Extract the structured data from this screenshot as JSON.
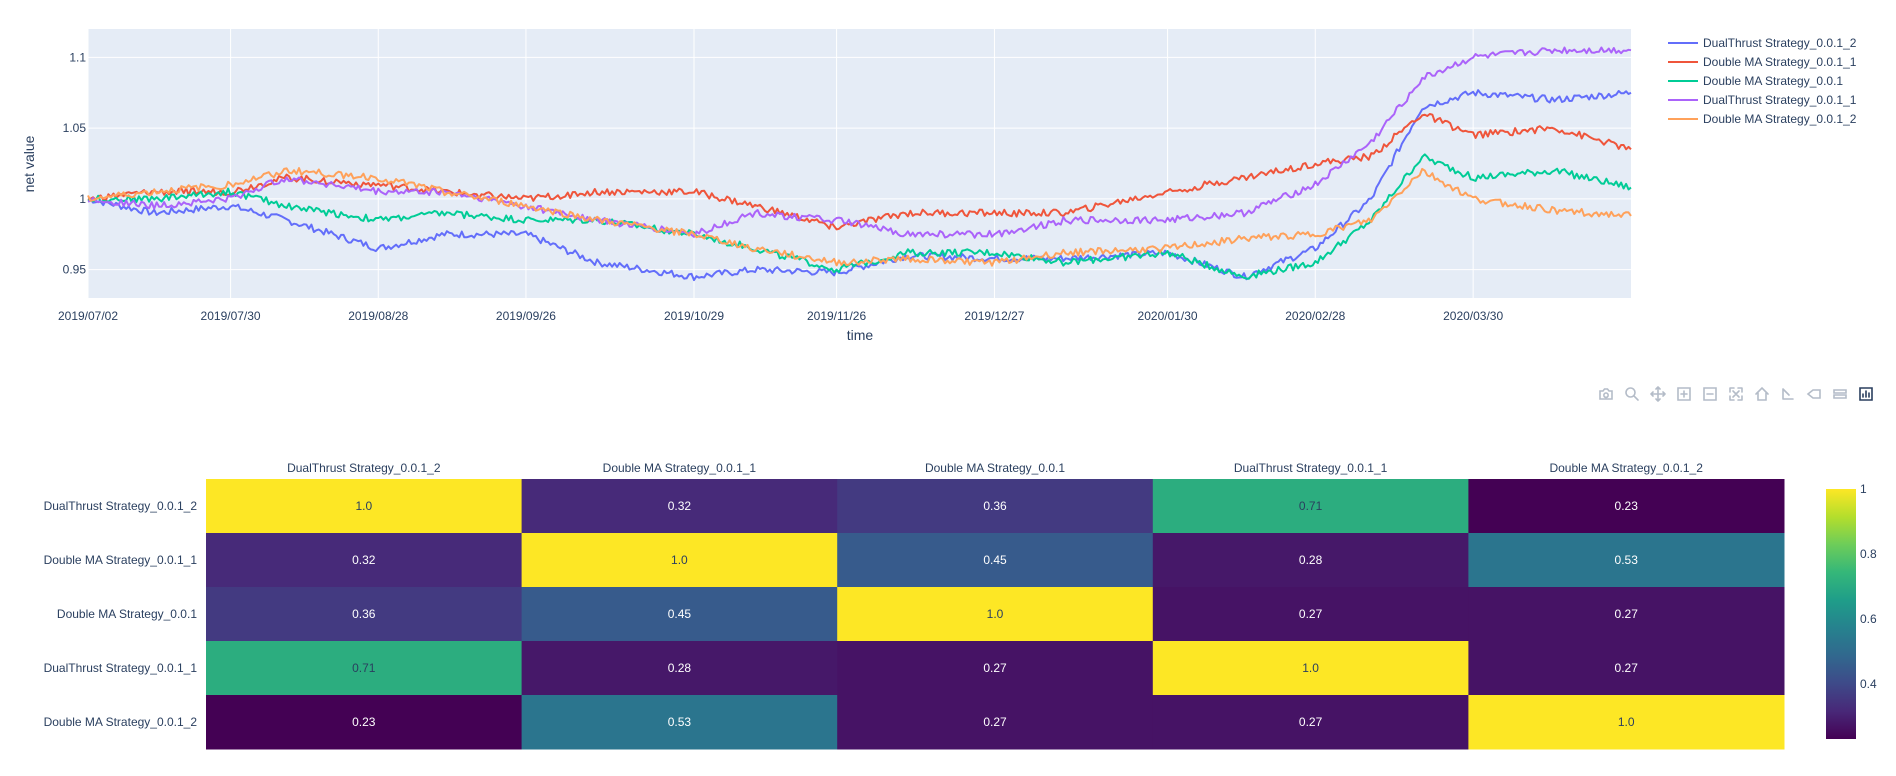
{
  "colors": {
    "plot_bg": "#e5ecf6",
    "grid": "#ffffff",
    "text": "#2a3f5f",
    "series": [
      "#636efa",
      "#ef553b",
      "#00cc96",
      "#ab63fa",
      "#ffa15a"
    ]
  },
  "modebar": {
    "icons": [
      "camera-icon",
      "zoom-icon",
      "pan-icon",
      "zoom-in-icon",
      "zoom-out-icon",
      "autoscale-icon",
      "reset-axes-icon",
      "spike-lines-icon",
      "hover-closest-icon",
      "hover-compare-icon",
      "plotly-logo-icon"
    ]
  },
  "chart_data": [
    {
      "type": "line",
      "xlabel": "time",
      "ylabel": "net value",
      "x_range": [
        "2019/07/02",
        "2020/04/30"
      ],
      "xticks": [
        "2019/07/02",
        "2019/07/30",
        "2019/08/28",
        "2019/09/26",
        "2019/10/29",
        "2019/11/26",
        "2019/12/27",
        "2020/01/30",
        "2020/02/28",
        "2020/03/30"
      ],
      "yticks": [
        "0.95",
        "1",
        "1.05",
        "1.1"
      ],
      "ylim": [
        0.93,
        1.12
      ],
      "grid": true,
      "legend_position": "right",
      "series": [
        {
          "name": "DualThrust Strategy_0.0.1_2",
          "color": "#636efa",
          "points": [
            [
              "2019/07/02",
              1.0
            ],
            [
              "2019/07/15",
              0.99
            ],
            [
              "2019/07/30",
              0.995
            ],
            [
              "2019/08/10",
              0.985
            ],
            [
              "2019/08/28",
              0.965
            ],
            [
              "2019/09/10",
              0.975
            ],
            [
              "2019/09/26",
              0.975
            ],
            [
              "2019/10/10",
              0.955
            ],
            [
              "2019/10/29",
              0.945
            ],
            [
              "2019/11/10",
              0.95
            ],
            [
              "2019/11/26",
              0.948
            ],
            [
              "2019/12/10",
              0.96
            ],
            [
              "2019/12/27",
              0.958
            ],
            [
              "2020/01/10",
              0.958
            ],
            [
              "2020/01/30",
              0.962
            ],
            [
              "2020/02/14",
              0.945
            ],
            [
              "2020/02/28",
              0.965
            ],
            [
              "2020/03/10",
              1.0
            ],
            [
              "2020/03/20",
              1.065
            ],
            [
              "2020/03/30",
              1.075
            ],
            [
              "2020/04/15",
              1.07
            ],
            [
              "2020/04/30",
              1.075
            ]
          ]
        },
        {
          "name": "Double MA Strategy_0.0.1_1",
          "color": "#ef553b",
          "points": [
            [
              "2019/07/02",
              1.0
            ],
            [
              "2019/07/15",
              1.005
            ],
            [
              "2019/07/30",
              1.005
            ],
            [
              "2019/08/10",
              1.015
            ],
            [
              "2019/08/28",
              1.01
            ],
            [
              "2019/09/10",
              1.005
            ],
            [
              "2019/09/26",
              1.0
            ],
            [
              "2019/10/10",
              1.005
            ],
            [
              "2019/10/29",
              1.005
            ],
            [
              "2019/11/10",
              0.995
            ],
            [
              "2019/11/26",
              0.98
            ],
            [
              "2019/12/10",
              0.99
            ],
            [
              "2019/12/27",
              0.99
            ],
            [
              "2020/01/10",
              0.99
            ],
            [
              "2020/01/30",
              1.005
            ],
            [
              "2020/02/14",
              1.015
            ],
            [
              "2020/02/28",
              1.025
            ],
            [
              "2020/03/10",
              1.03
            ],
            [
              "2020/03/20",
              1.06
            ],
            [
              "2020/03/30",
              1.045
            ],
            [
              "2020/04/15",
              1.05
            ],
            [
              "2020/04/30",
              1.035
            ]
          ]
        },
        {
          "name": "Double MA Strategy_0.0.1",
          "color": "#00cc96",
          "points": [
            [
              "2019/07/02",
              1.0
            ],
            [
              "2019/07/15",
              1.0
            ],
            [
              "2019/07/30",
              1.005
            ],
            [
              "2019/08/10",
              0.995
            ],
            [
              "2019/08/28",
              0.985
            ],
            [
              "2019/09/10",
              0.99
            ],
            [
              "2019/09/26",
              0.985
            ],
            [
              "2019/10/10",
              0.985
            ],
            [
              "2019/10/29",
              0.975
            ],
            [
              "2019/11/10",
              0.965
            ],
            [
              "2019/11/26",
              0.95
            ],
            [
              "2019/12/10",
              0.962
            ],
            [
              "2019/12/27",
              0.962
            ],
            [
              "2020/01/10",
              0.955
            ],
            [
              "2020/01/30",
              0.962
            ],
            [
              "2020/02/14",
              0.945
            ],
            [
              "2020/02/28",
              0.955
            ],
            [
              "2020/03/10",
              0.985
            ],
            [
              "2020/03/20",
              1.03
            ],
            [
              "2020/03/30",
              1.015
            ],
            [
              "2020/04/15",
              1.02
            ],
            [
              "2020/04/30",
              1.008
            ]
          ]
        },
        {
          "name": "DualThrust Strategy_0.0.1_1",
          "color": "#ab63fa",
          "points": [
            [
              "2019/07/02",
              1.0
            ],
            [
              "2019/07/15",
              0.995
            ],
            [
              "2019/07/30",
              1.0
            ],
            [
              "2019/08/10",
              1.015
            ],
            [
              "2019/08/28",
              1.005
            ],
            [
              "2019/09/10",
              1.005
            ],
            [
              "2019/09/26",
              0.995
            ],
            [
              "2019/10/10",
              0.985
            ],
            [
              "2019/10/29",
              0.975
            ],
            [
              "2019/11/10",
              0.99
            ],
            [
              "2019/11/26",
              0.985
            ],
            [
              "2019/12/10",
              0.975
            ],
            [
              "2019/12/27",
              0.975
            ],
            [
              "2020/01/10",
              0.985
            ],
            [
              "2020/01/30",
              0.985
            ],
            [
              "2020/02/14",
              0.99
            ],
            [
              "2020/02/28",
              1.01
            ],
            [
              "2020/03/10",
              1.04
            ],
            [
              "2020/03/20",
              1.085
            ],
            [
              "2020/03/30",
              1.1
            ],
            [
              "2020/04/15",
              1.105
            ],
            [
              "2020/04/30",
              1.105
            ]
          ]
        },
        {
          "name": "Double MA Strategy_0.0.1_2",
          "color": "#ffa15a",
          "points": [
            [
              "2019/07/02",
              1.0
            ],
            [
              "2019/07/15",
              1.005
            ],
            [
              "2019/07/30",
              1.01
            ],
            [
              "2019/08/10",
              1.02
            ],
            [
              "2019/08/28",
              1.015
            ],
            [
              "2019/09/10",
              1.005
            ],
            [
              "2019/09/26",
              0.995
            ],
            [
              "2019/10/10",
              0.985
            ],
            [
              "2019/10/29",
              0.975
            ],
            [
              "2019/11/10",
              0.965
            ],
            [
              "2019/11/26",
              0.955
            ],
            [
              "2019/12/10",
              0.958
            ],
            [
              "2019/12/27",
              0.955
            ],
            [
              "2020/01/10",
              0.962
            ],
            [
              "2020/01/30",
              0.965
            ],
            [
              "2020/02/14",
              0.972
            ],
            [
              "2020/02/28",
              0.975
            ],
            [
              "2020/03/10",
              0.985
            ],
            [
              "2020/03/20",
              1.02
            ],
            [
              "2020/03/30",
              1.0
            ],
            [
              "2020/04/15",
              0.992
            ],
            [
              "2020/04/30",
              0.988
            ]
          ]
        }
      ]
    },
    {
      "type": "heatmap",
      "x_labels": [
        "DualThrust Strategy_0.0.1_2",
        "Double MA Strategy_0.0.1_1",
        "Double MA Strategy_0.0.1",
        "DualThrust Strategy_0.0.1_1",
        "Double MA Strategy_0.0.1_2"
      ],
      "y_labels": [
        "DualThrust Strategy_0.0.1_2",
        "Double MA Strategy_0.0.1_1",
        "Double MA Strategy_0.0.1",
        "DualThrust Strategy_0.0.1_1",
        "Double MA Strategy_0.0.1_2"
      ],
      "values": [
        [
          1.0,
          0.32,
          0.36,
          0.71,
          0.23
        ],
        [
          0.32,
          1.0,
          0.45,
          0.28,
          0.53
        ],
        [
          0.36,
          0.45,
          1.0,
          0.27,
          0.27
        ],
        [
          0.71,
          0.28,
          0.27,
          1.0,
          0.27
        ],
        [
          0.23,
          0.53,
          0.27,
          0.27,
          1.0
        ]
      ],
      "cell_text": [
        [
          "1.0",
          "0.32",
          "0.36",
          "0.71",
          "0.23"
        ],
        [
          "0.32",
          "1.0",
          "0.45",
          "0.28",
          "0.53"
        ],
        [
          "0.36",
          "0.45",
          "1.0",
          "0.27",
          "0.27"
        ],
        [
          "0.71",
          "0.28",
          "0.27",
          "1.0",
          "0.27"
        ],
        [
          "0.23",
          "0.53",
          "0.27",
          "0.27",
          "1.0"
        ]
      ],
      "colorscale": "viridis",
      "zmin": 0.23,
      "zmax": 1.0,
      "colorbar_ticks": [
        "0.4",
        "0.6",
        "0.8",
        "1"
      ]
    }
  ]
}
